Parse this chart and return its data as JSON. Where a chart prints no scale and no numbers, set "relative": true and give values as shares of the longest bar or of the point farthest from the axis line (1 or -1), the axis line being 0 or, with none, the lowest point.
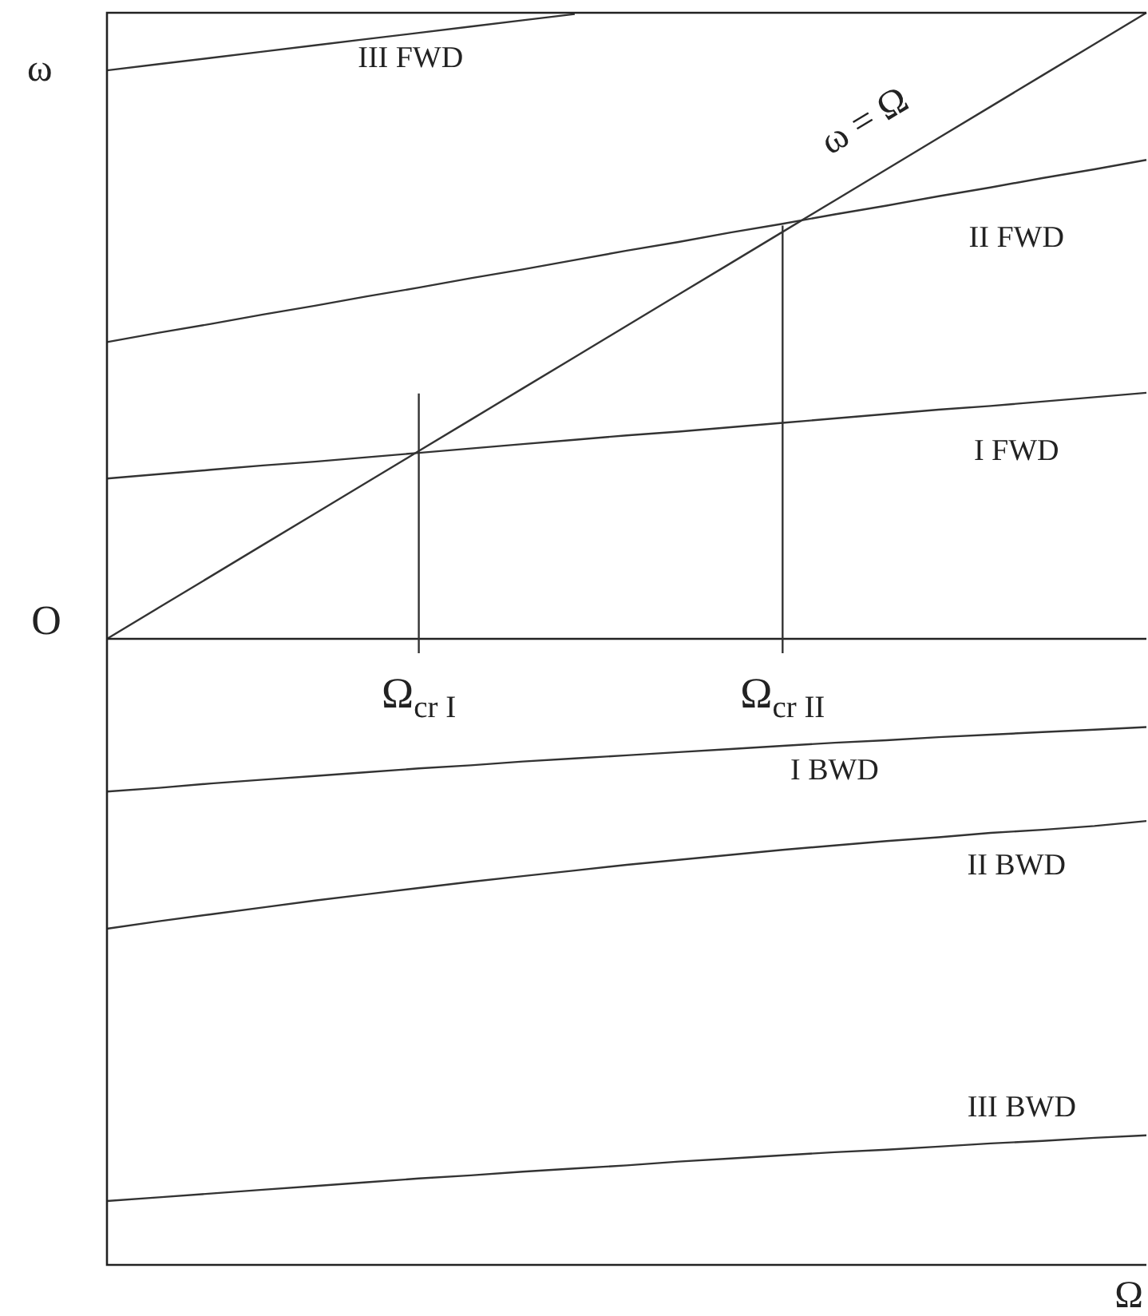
{
  "chart_data": {
    "type": "line",
    "relative": true,
    "xlabel": "Ω",
    "ylabel": "ω",
    "marker": "none",
    "legend": false,
    "categories": [
      null,
      null,
      null,
      null,
      null,
      null,
      "Ω$_{cr I}$",
      null,
      null,
      null,
      null,
      null,
      null,
      "Ω$_{cr II}$",
      null,
      null,
      null,
      null,
      null,
      null,
      null
    ],
    "series": [
      {
        "name": "ω = Ω",
        "color": "#333333",
        "values": [
          0,
          0.05,
          0.1,
          0.15,
          0.2,
          0.25,
          0.3,
          0.35,
          0.4,
          0.45,
          0.5,
          0.55,
          0.6,
          0.65,
          0.7,
          0.75,
          0.8,
          0.85,
          0.9,
          0.95,
          1
        ]
      },
      {
        "name": "I FWD",
        "color": "#333333",
        "values": [
          0.256,
          0.263,
          0.27,
          0.277,
          0.283,
          0.29,
          0.297,
          0.304,
          0.311,
          0.318,
          0.325,
          0.331,
          0.338,
          0.345,
          0.352,
          0.359,
          0.366,
          0.372,
          0.379,
          0.386,
          0.393
        ]
      },
      {
        "name": "II FWD",
        "color": "#333333",
        "values": [
          0.474,
          0.489,
          0.503,
          0.518,
          0.532,
          0.547,
          0.561,
          0.576,
          0.59,
          0.605,
          0.62,
          0.634,
          0.649,
          0.663,
          0.678,
          0.692,
          0.707,
          0.721,
          0.736,
          0.75,
          0.765
        ]
      },
      {
        "name": "III FWD",
        "color": "#333333",
        "values": [
          0.908,
          0.918,
          0.928,
          0.938,
          0.948,
          0.958,
          0.968,
          0.978,
          0.988,
          0.998,
          null,
          null,
          null,
          null,
          null,
          null,
          null,
          null,
          null,
          null,
          null
        ]
      },
      {
        "name": "I BWD",
        "color": "#333333",
        "values": [
          -0.244,
          -0.238,
          -0.231,
          -0.225,
          -0.219,
          -0.213,
          -0.207,
          -0.202,
          -0.196,
          -0.191,
          -0.186,
          -0.181,
          -0.176,
          -0.171,
          -0.166,
          -0.162,
          -0.157,
          -0.153,
          -0.149,
          -0.145,
          -0.141
        ]
      },
      {
        "name": "II BWD",
        "color": "#333333",
        "values": [
          -0.463,
          -0.451,
          -0.44,
          -0.429,
          -0.418,
          -0.408,
          -0.398,
          -0.388,
          -0.379,
          -0.37,
          -0.361,
          -0.353,
          -0.345,
          -0.337,
          -0.33,
          -0.323,
          -0.317,
          -0.31,
          -0.305,
          -0.299,
          -0.291
        ]
      },
      {
        "name": "III BWD",
        "color": "#333333",
        "values": [
          -0.898,
          -0.892,
          -0.886,
          -0.88,
          -0.874,
          -0.868,
          -0.862,
          -0.857,
          -0.851,
          -0.846,
          -0.841,
          -0.835,
          -0.83,
          -0.825,
          -0.82,
          -0.816,
          -0.811,
          -0.806,
          -0.802,
          -0.797,
          -0.793
        ]
      }
    ],
    "ref_lines": [
      {
        "axis": "x",
        "value": "Ω$_{cr I}$",
        "color": "#333333"
      },
      {
        "axis": "x",
        "value": "Ω$_{cr II}$",
        "color": "#333333"
      }
    ],
    "annotations": [
      "O"
    ]
  }
}
